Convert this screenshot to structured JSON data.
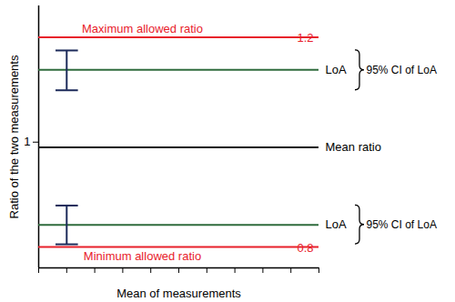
{
  "chart_data": {
    "type": "bland_altman",
    "x_label": "Mean of measurements",
    "y_label": "Ratio of the two measurements",
    "xlim": [
      0,
      10
    ],
    "xticks": [
      0,
      1,
      2,
      3,
      4,
      5,
      6,
      7,
      8,
      9,
      10
    ],
    "ylim": [
      0.76,
      1.26
    ],
    "yticks": [
      1
    ],
    "tick_labels": "y",
    "grid": false,
    "lines": [
      {
        "name": "Maximum allowed ratio",
        "value": 1.2,
        "label": "1.2",
        "color": "#e8212b"
      },
      {
        "name": "LoA",
        "value": 1.138,
        "color": "#2f6b3c"
      },
      {
        "name": "Mean ratio",
        "value": 0.99,
        "color": "#111111"
      },
      {
        "name": "LoA",
        "value": 0.842,
        "color": "#2f6b3c"
      },
      {
        "name": "Minimum allowed ratio",
        "value": 0.8,
        "label": "0.8",
        "color": "#e8212b"
      }
    ],
    "error_bars": [
      {
        "name": "95% CI of LoA",
        "x": 1,
        "low": 1.099,
        "high": 1.175,
        "color": "#1c2a5a"
      },
      {
        "name": "95% CI of LoA",
        "x": 1,
        "low": 0.805,
        "high": 0.879,
        "color": "#1c2a5a"
      }
    ]
  }
}
